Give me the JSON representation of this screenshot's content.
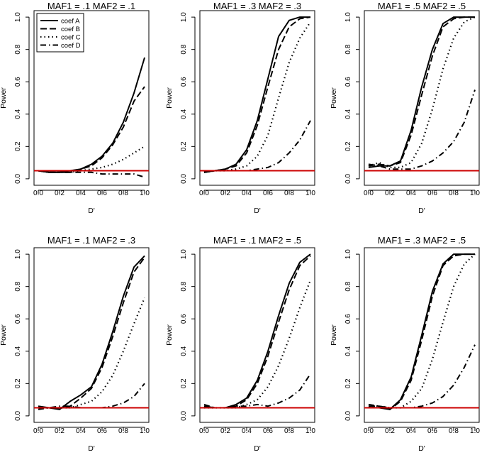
{
  "chart_data": [
    {
      "type": "line",
      "title": "MAF1 = .1  MAF2 = .1",
      "xlabel": "D'",
      "ylabel": "Power",
      "xlim": [
        0,
        1
      ],
      "ylim": [
        0,
        1
      ],
      "xticks": [
        "0.0",
        "0.2",
        "0.4",
        "0.6",
        "0.8",
        "1.0"
      ],
      "yticks": [
        "0.0",
        "0.2",
        "0.4",
        "0.6",
        "0.8",
        "1.0"
      ],
      "x": [
        0,
        0.1,
        0.2,
        0.3,
        0.4,
        0.5,
        0.6,
        0.7,
        0.8,
        0.9,
        1.0
      ],
      "legend": [
        "coef A",
        "coef B",
        "coef C",
        "coef D"
      ],
      "reference_line": 0.05,
      "series": [
        {
          "name": "coef A",
          "values": [
            0.05,
            0.04,
            0.04,
            0.05,
            0.06,
            0.09,
            0.14,
            0.22,
            0.35,
            0.53,
            0.75
          ]
        },
        {
          "name": "coef B",
          "values": [
            0.05,
            0.04,
            0.04,
            0.04,
            0.06,
            0.08,
            0.13,
            0.21,
            0.32,
            0.48,
            0.57
          ]
        },
        {
          "name": "coef C",
          "values": [
            0.05,
            0.04,
            0.04,
            0.04,
            0.05,
            0.06,
            0.07,
            0.09,
            0.12,
            0.16,
            0.2
          ]
        },
        {
          "name": "coef D",
          "values": [
            0.05,
            0.04,
            0.04,
            0.04,
            0.04,
            0.04,
            0.03,
            0.03,
            0.03,
            0.03,
            0.01
          ]
        }
      ]
    },
    {
      "type": "line",
      "title": "MAF1 = .3  MAF2 = .3",
      "xlabel": "D'",
      "ylabel": "Power",
      "xlim": [
        0,
        1
      ],
      "ylim": [
        0,
        1
      ],
      "xticks": [
        "0.0",
        "0.2",
        "0.4",
        "0.6",
        "0.8",
        "1.0"
      ],
      "yticks": [
        "0.0",
        "0.2",
        "0.4",
        "0.6",
        "0.8",
        "1.0"
      ],
      "x": [
        0,
        0.1,
        0.2,
        0.3,
        0.4,
        0.5,
        0.6,
        0.7,
        0.8,
        0.9,
        1.0
      ],
      "reference_line": 0.05,
      "series": [
        {
          "name": "coef A",
          "values": [
            0.04,
            0.05,
            0.06,
            0.09,
            0.18,
            0.36,
            0.62,
            0.88,
            0.98,
            1.0,
            1.0
          ]
        },
        {
          "name": "coef B",
          "values": [
            0.04,
            0.05,
            0.06,
            0.08,
            0.16,
            0.33,
            0.57,
            0.8,
            0.94,
            0.99,
            1.0
          ]
        },
        {
          "name": "coef C",
          "values": [
            0.04,
            0.05,
            0.05,
            0.06,
            0.08,
            0.14,
            0.27,
            0.5,
            0.72,
            0.87,
            0.97
          ]
        },
        {
          "name": "coef D",
          "values": [
            0.04,
            0.05,
            0.05,
            0.05,
            0.05,
            0.06,
            0.07,
            0.1,
            0.16,
            0.24,
            0.36
          ]
        }
      ]
    },
    {
      "type": "line",
      "title": "MAF1 = .5  MAF2 = .5",
      "xlabel": "D'",
      "ylabel": "Power",
      "xlim": [
        0,
        1
      ],
      "ylim": [
        0,
        1
      ],
      "xticks": [
        "0.0",
        "0.2",
        "0.4",
        "0.6",
        "0.8",
        "1.0"
      ],
      "yticks": [
        "0.0",
        "0.2",
        "0.4",
        "0.6",
        "0.8",
        "1.0"
      ],
      "x": [
        0,
        0.1,
        0.2,
        0.3,
        0.4,
        0.5,
        0.6,
        0.7,
        0.8,
        0.9,
        1.0
      ],
      "reference_line": 0.05,
      "series": [
        {
          "name": "coef A",
          "values": [
            0.07,
            0.08,
            0.08,
            0.11,
            0.3,
            0.57,
            0.8,
            0.96,
            1.0,
            1.0,
            1.0
          ]
        },
        {
          "name": "coef B",
          "values": [
            0.08,
            0.09,
            0.08,
            0.1,
            0.27,
            0.52,
            0.76,
            0.94,
            0.99,
            1.0,
            1.0
          ]
        },
        {
          "name": "coef C",
          "values": [
            0.08,
            0.1,
            0.07,
            0.07,
            0.1,
            0.22,
            0.43,
            0.68,
            0.87,
            0.97,
            1.0
          ]
        },
        {
          "name": "coef D",
          "values": [
            0.09,
            0.08,
            0.06,
            0.06,
            0.06,
            0.08,
            0.11,
            0.16,
            0.23,
            0.35,
            0.55
          ]
        }
      ]
    },
    {
      "type": "line",
      "title": "MAF1 = .1  MAF2 = .3",
      "xlabel": "D'",
      "ylabel": "Power",
      "xlim": [
        0,
        1
      ],
      "ylim": [
        0,
        1
      ],
      "xticks": [
        "0.0",
        "0.2",
        "0.4",
        "0.6",
        "0.8",
        "1.0"
      ],
      "yticks": [
        "0.0",
        "0.2",
        "0.4",
        "0.6",
        "0.8",
        "1.0"
      ],
      "x": [
        0,
        0.1,
        0.2,
        0.3,
        0.4,
        0.5,
        0.6,
        0.7,
        0.8,
        0.9,
        1.0
      ],
      "reference_line": 0.05,
      "series": [
        {
          "name": "coef A",
          "values": [
            0.06,
            0.05,
            0.04,
            0.09,
            0.13,
            0.18,
            0.32,
            0.52,
            0.74,
            0.92,
            0.99
          ]
        },
        {
          "name": "coef B",
          "values": [
            0.05,
            0.05,
            0.05,
            0.06,
            0.11,
            0.17,
            0.3,
            0.49,
            0.7,
            0.89,
            0.98
          ]
        },
        {
          "name": "coef C",
          "values": [
            0.05,
            0.05,
            0.05,
            0.05,
            0.07,
            0.09,
            0.15,
            0.25,
            0.4,
            0.57,
            0.73
          ]
        },
        {
          "name": "coef D",
          "values": [
            0.04,
            0.05,
            0.06,
            0.06,
            0.05,
            0.05,
            0.05,
            0.06,
            0.08,
            0.12,
            0.2
          ]
        }
      ]
    },
    {
      "type": "line",
      "title": "MAF1 = .1  MAF2 = .5",
      "xlabel": "D'",
      "ylabel": "Power",
      "xlim": [
        0,
        1
      ],
      "ylim": [
        0,
        1
      ],
      "xticks": [
        "0.0",
        "0.2",
        "0.4",
        "0.6",
        "0.8",
        "1.0"
      ],
      "yticks": [
        "0.0",
        "0.2",
        "0.4",
        "0.6",
        "0.8",
        "1.0"
      ],
      "x": [
        0,
        0.1,
        0.2,
        0.3,
        0.4,
        0.5,
        0.6,
        0.7,
        0.8,
        0.9,
        1.0
      ],
      "reference_line": 0.05,
      "series": [
        {
          "name": "coef A",
          "values": [
            0.06,
            0.05,
            0.05,
            0.07,
            0.11,
            0.22,
            0.4,
            0.62,
            0.82,
            0.95,
            1.0
          ]
        },
        {
          "name": "coef B",
          "values": [
            0.06,
            0.05,
            0.05,
            0.06,
            0.1,
            0.2,
            0.37,
            0.58,
            0.78,
            0.93,
            0.99
          ]
        },
        {
          "name": "coef C",
          "values": [
            0.05,
            0.05,
            0.05,
            0.05,
            0.07,
            0.1,
            0.18,
            0.31,
            0.48,
            0.67,
            0.84
          ]
        },
        {
          "name": "coef D",
          "values": [
            0.07,
            0.05,
            0.05,
            0.06,
            0.06,
            0.07,
            0.06,
            0.08,
            0.11,
            0.16,
            0.26
          ]
        }
      ]
    },
    {
      "type": "line",
      "title": "MAF1 = .3  MAF2 = .5",
      "xlabel": "D'",
      "ylabel": "Power",
      "xlim": [
        0,
        1
      ],
      "ylim": [
        0,
        1
      ],
      "xticks": [
        "0.0",
        "0.2",
        "0.4",
        "0.6",
        "0.8",
        "1.0"
      ],
      "yticks": [
        "0.0",
        "0.2",
        "0.4",
        "0.6",
        "0.8",
        "1.0"
      ],
      "x": [
        0,
        0.1,
        0.2,
        0.3,
        0.4,
        0.5,
        0.6,
        0.7,
        0.8,
        0.9,
        1.0
      ],
      "reference_line": 0.05,
      "series": [
        {
          "name": "coef A",
          "values": [
            0.05,
            0.05,
            0.04,
            0.1,
            0.24,
            0.5,
            0.77,
            0.94,
            1.0,
            1.0,
            1.0
          ]
        },
        {
          "name": "coef B",
          "values": [
            0.06,
            0.06,
            0.04,
            0.09,
            0.22,
            0.47,
            0.74,
            0.93,
            0.99,
            1.0,
            1.0
          ]
        },
        {
          "name": "coef C",
          "values": [
            0.06,
            0.06,
            0.05,
            0.05,
            0.09,
            0.17,
            0.35,
            0.58,
            0.8,
            0.94,
            1.0
          ]
        },
        {
          "name": "coef D",
          "values": [
            0.07,
            0.06,
            0.05,
            0.05,
            0.05,
            0.06,
            0.08,
            0.12,
            0.19,
            0.3,
            0.44
          ]
        }
      ]
    }
  ],
  "colors": {
    "reference_line": "#cc0000",
    "series": "#000000",
    "axis": "#000000"
  }
}
